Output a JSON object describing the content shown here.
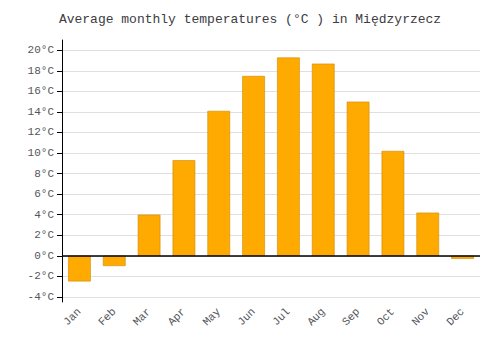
{
  "chart_data": {
    "type": "bar",
    "title": "Average monthly temperatures (°C ) in Międzyrzecz",
    "categories": [
      "Jan",
      "Feb",
      "Mar",
      "Apr",
      "May",
      "Jun",
      "Jul",
      "Aug",
      "Sep",
      "Oct",
      "Nov",
      "Dec"
    ],
    "values": [
      -2.5,
      -1.0,
      4.0,
      9.3,
      14.1,
      17.5,
      19.3,
      18.7,
      15.0,
      10.2,
      4.2,
      -0.3
    ],
    "color": "#FFAA00",
    "ylim": [
      -4.5,
      21
    ],
    "yticks": [
      {
        "value": -4,
        "label": "-4°C"
      },
      {
        "value": -2,
        "label": "-2°C"
      },
      {
        "value": 0,
        "label": "0°C"
      },
      {
        "value": 2,
        "label": "2°C"
      },
      {
        "value": 4,
        "label": "4°C"
      },
      {
        "value": 6,
        "label": "6°C"
      },
      {
        "value": 8,
        "label": "8°C"
      },
      {
        "value": 10,
        "label": "10°C"
      },
      {
        "value": 12,
        "label": "12°C"
      },
      {
        "value": 14,
        "label": "14°C"
      },
      {
        "value": 16,
        "label": "16°C"
      },
      {
        "value": 18,
        "label": "18°C"
      },
      {
        "value": 20,
        "label": "20°C"
      }
    ],
    "grid": true
  }
}
